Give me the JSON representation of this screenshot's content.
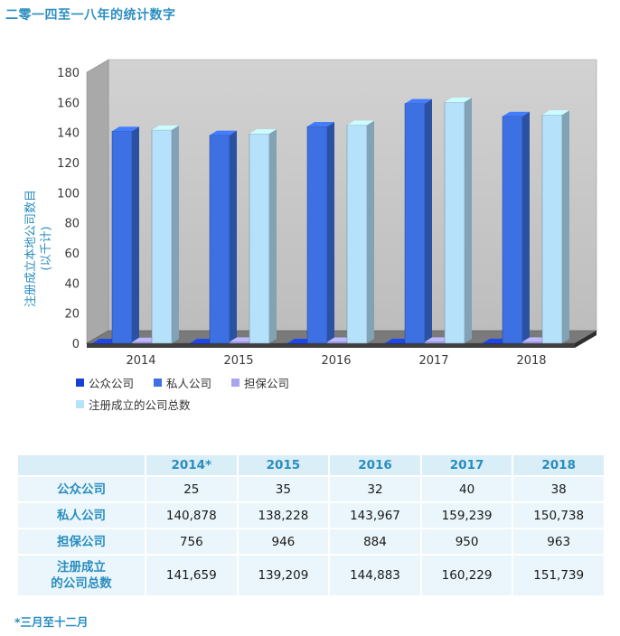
{
  "title": "二零一四至一八年的统计数字",
  "chart_data": {
    "type": "bar",
    "categories": [
      "2014",
      "2015",
      "2016",
      "2017",
      "2018"
    ],
    "series": [
      {
        "name": "公众公司",
        "color": "#1a3fd1",
        "values": [
          0.025,
          0.035,
          0.032,
          0.04,
          0.038
        ]
      },
      {
        "name": "私人公司",
        "color": "#3c70e3",
        "values": [
          140.878,
          138.228,
          143.967,
          159.239,
          150.738
        ]
      },
      {
        "name": "担保公司",
        "color": "#a9a4ee",
        "values": [
          0.756,
          0.946,
          0.884,
          0.95,
          0.963
        ]
      },
      {
        "name": "注册成立的公司总数",
        "color": "#b5e1fb",
        "values": [
          141.659,
          139.209,
          144.883,
          160.229,
          151.739
        ]
      }
    ],
    "ylabel": "注册成立本地公司数目",
    "ylabel_unit": "(以千计)",
    "yticks": [
      0,
      20,
      40,
      60,
      80,
      100,
      120,
      140,
      160,
      180
    ],
    "ylim": [
      0,
      180
    ],
    "grid": false,
    "legend_position": "bottom-left"
  },
  "table": {
    "headers": [
      "2014*",
      "2015",
      "2016",
      "2017",
      "2018"
    ],
    "rows": [
      {
        "label": "公众公司",
        "values": [
          "25",
          "35",
          "32",
          "40",
          "38"
        ]
      },
      {
        "label": "私人公司",
        "values": [
          "140,878",
          "138,228",
          "143,967",
          "159,239",
          "150,738"
        ]
      },
      {
        "label": "担保公司",
        "values": [
          "756",
          "946",
          "884",
          "950",
          "963"
        ]
      },
      {
        "label": "注册成立\n的公司总数",
        "values": [
          "141,659",
          "139,209",
          "144,883",
          "160,229",
          "151,739"
        ]
      }
    ]
  },
  "footnote": "*三月至十二月"
}
